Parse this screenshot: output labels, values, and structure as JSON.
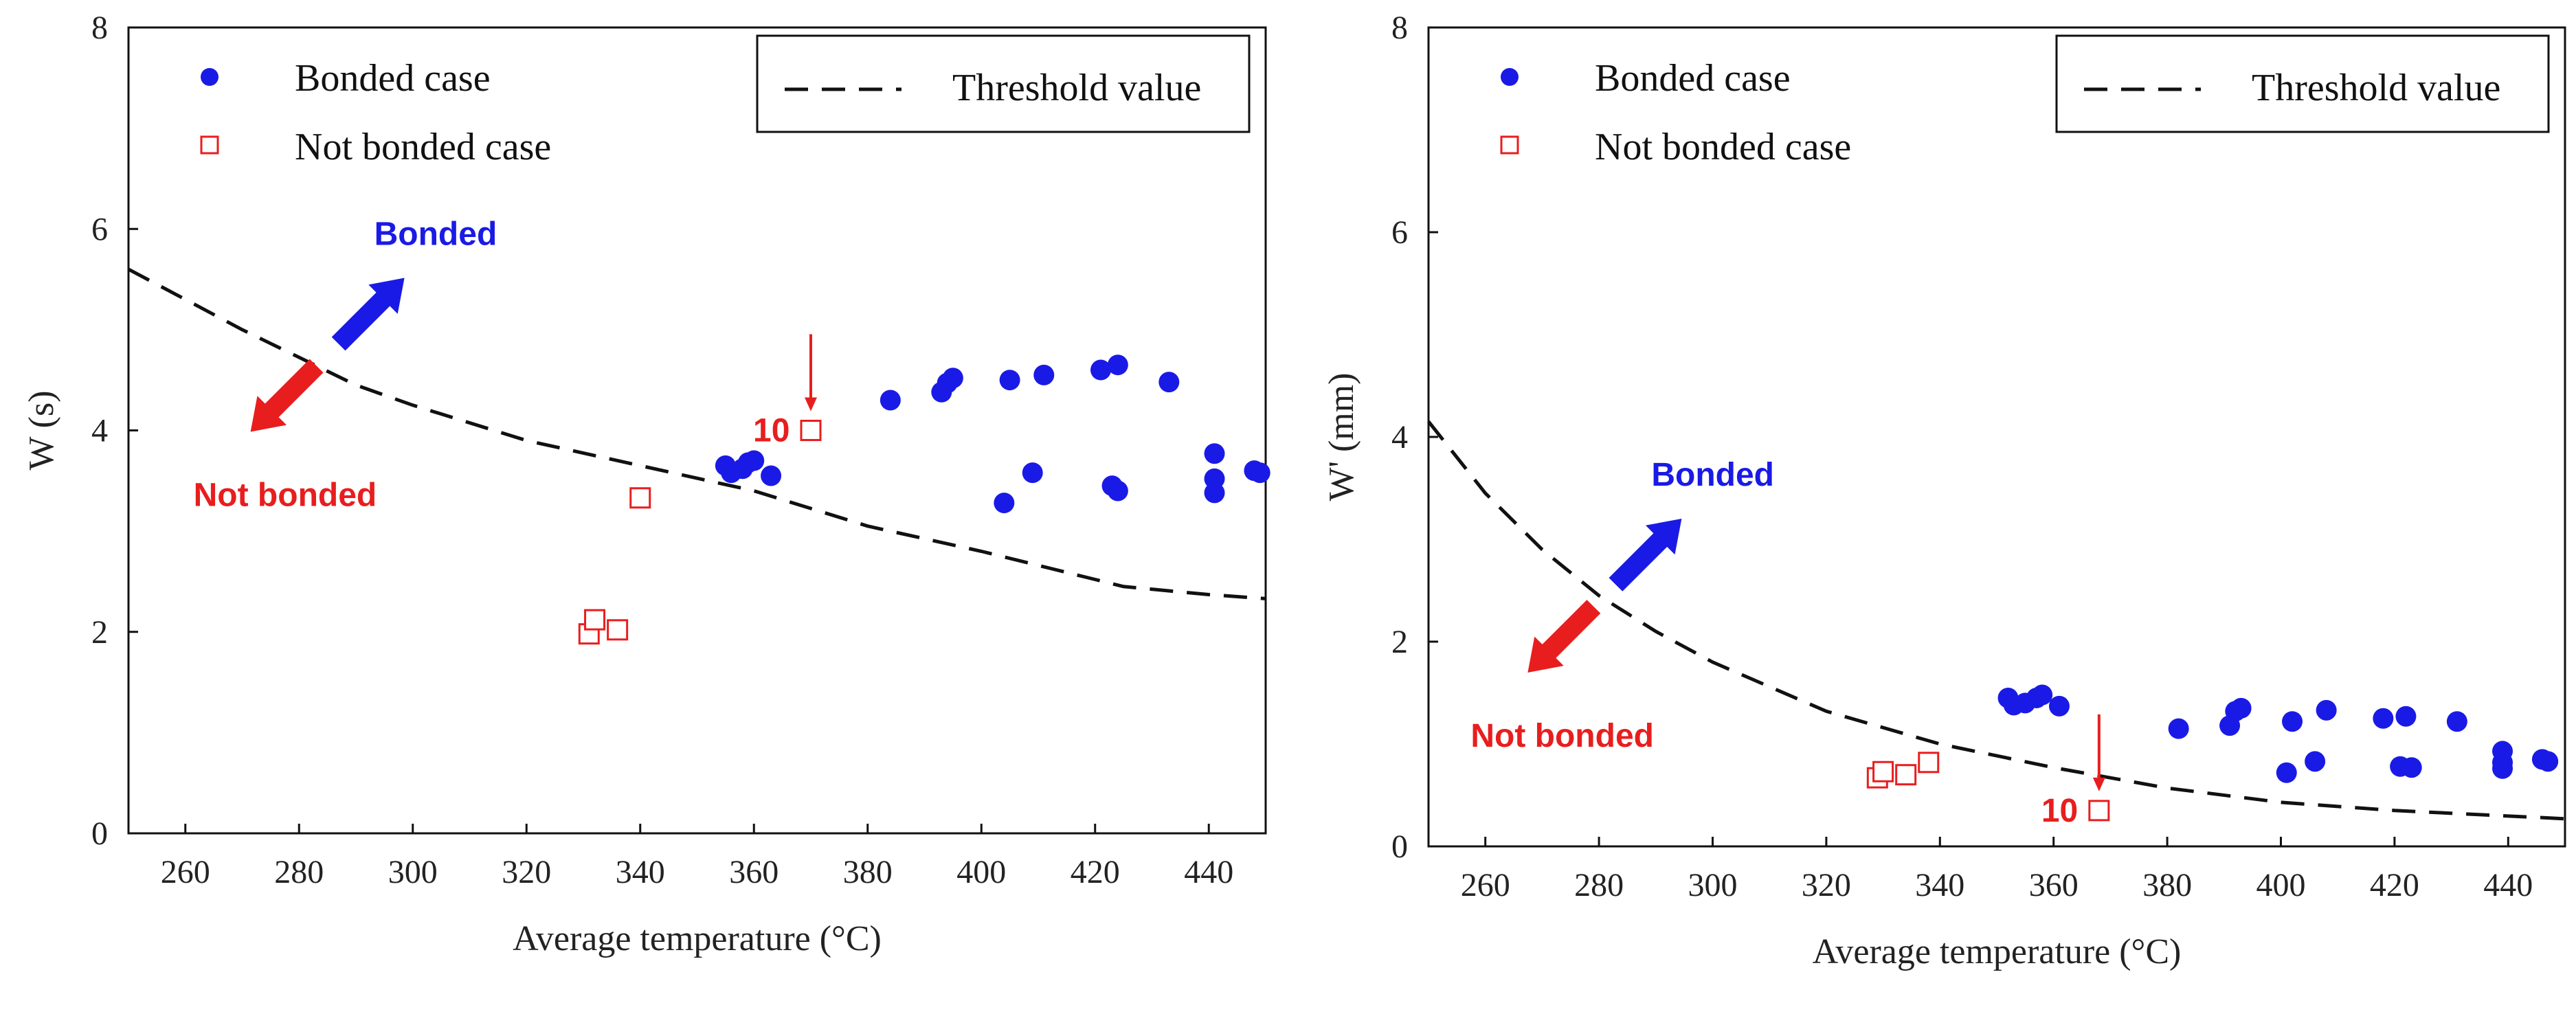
{
  "chart_data": [
    {
      "type": "scatter",
      "id": "left",
      "title": "",
      "xlabel": "Average temperature (°C)",
      "ylabel": "W (s)",
      "xlim": [
        250,
        450
      ],
      "ylim": [
        0,
        8
      ],
      "xticks": [
        260,
        280,
        300,
        320,
        340,
        360,
        380,
        400,
        420,
        440
      ],
      "yticks": [
        0,
        2,
        4,
        6,
        8
      ],
      "legend": {
        "bonded_label": "Bonded case",
        "not_bonded_label": "Not bonded case",
        "threshold_label": "Threshold value"
      },
      "series": [
        {
          "name": "Bonded case",
          "marker": "filled-circle",
          "color": "#1a1ae6",
          "points": [
            [
              355,
              3.65
            ],
            [
              356,
              3.58
            ],
            [
              358,
              3.62
            ],
            [
              359,
              3.68
            ],
            [
              360,
              3.7
            ],
            [
              363,
              3.55
            ],
            [
              384,
              4.3
            ],
            [
              393,
              4.38
            ],
            [
              394,
              4.47
            ],
            [
              395,
              4.52
            ],
            [
              404,
              3.28
            ],
            [
              405,
              4.5
            ],
            [
              409,
              3.58
            ],
            [
              411,
              4.55
            ],
            [
              421,
              4.6
            ],
            [
              423,
              3.45
            ],
            [
              424,
              4.65
            ],
            [
              424,
              3.4
            ],
            [
              433,
              4.48
            ],
            [
              441,
              3.77
            ],
            [
              441,
              3.52
            ],
            [
              441,
              3.38
            ],
            [
              448,
              3.6
            ],
            [
              449,
              3.58
            ]
          ]
        },
        {
          "name": "Not bonded case",
          "marker": "open-square",
          "color": "#e81e1e",
          "points": [
            [
              331,
              1.98
            ],
            [
              332,
              2.12
            ],
            [
              336,
              2.02
            ],
            [
              340,
              3.33
            ],
            [
              370,
              4.0
            ]
          ]
        },
        {
          "name": "Threshold value",
          "marker": "dashed-line",
          "color": "#111111",
          "points": [
            [
              250,
              5.6
            ],
            [
              270,
              5.0
            ],
            [
              290,
              4.45
            ],
            [
              300,
              4.25
            ],
            [
              320,
              3.9
            ],
            [
              340,
              3.65
            ],
            [
              360,
              3.4
            ],
            [
              380,
              3.05
            ],
            [
              400,
              2.8
            ],
            [
              420,
              2.52
            ],
            [
              425,
              2.45
            ],
            [
              440,
              2.37
            ],
            [
              450,
              2.33
            ]
          ]
        }
      ],
      "annotations": {
        "bonded_text": "Bonded",
        "not_bonded_text": "Not bonded",
        "marked_point_label": "10",
        "marked_point": [
          370,
          4.0
        ],
        "arrow_center": [
          285,
          4.75
        ]
      }
    },
    {
      "type": "scatter",
      "id": "right",
      "title": "",
      "xlabel": "Average temperature (°C)",
      "ylabel": "W' (mm)",
      "xlim": [
        250,
        450
      ],
      "ylim": [
        0,
        8
      ],
      "xticks": [
        260,
        280,
        300,
        320,
        340,
        360,
        380,
        400,
        420,
        440
      ],
      "yticks": [
        0,
        2,
        4,
        6,
        8
      ],
      "legend": {
        "bonded_label": "Bonded case",
        "not_bonded_label": "Not bonded case",
        "threshold_label": "Threshold value"
      },
      "series": [
        {
          "name": "Bonded case",
          "marker": "filled-circle",
          "color": "#1a1ae6",
          "points": [
            [
              352,
              1.45
            ],
            [
              353,
              1.38
            ],
            [
              355,
              1.4
            ],
            [
              357,
              1.45
            ],
            [
              358,
              1.48
            ],
            [
              361,
              1.37
            ],
            [
              382,
              1.15
            ],
            [
              391,
              1.18
            ],
            [
              392,
              1.32
            ],
            [
              393,
              1.35
            ],
            [
              401,
              0.72
            ],
            [
              402,
              1.22
            ],
            [
              406,
              0.83
            ],
            [
              408,
              1.33
            ],
            [
              418,
              1.25
            ],
            [
              421,
              0.78
            ],
            [
              422,
              1.27
            ],
            [
              423,
              0.77
            ],
            [
              431,
              1.22
            ],
            [
              439,
              0.93
            ],
            [
              439,
              0.82
            ],
            [
              439,
              0.76
            ],
            [
              446,
              0.85
            ],
            [
              447,
              0.83
            ]
          ]
        },
        {
          "name": "Not bonded case",
          "marker": "open-square",
          "color": "#e81e1e",
          "points": [
            [
              329,
              0.67
            ],
            [
              330,
              0.73
            ],
            [
              334,
              0.7
            ],
            [
              338,
              0.82
            ],
            [
              368,
              0.35
            ]
          ]
        },
        {
          "name": "Threshold value",
          "marker": "dashed-line",
          "color": "#111111",
          "points": [
            [
              250,
              4.15
            ],
            [
              260,
              3.45
            ],
            [
              270,
              2.9
            ],
            [
              280,
              2.45
            ],
            [
              290,
              2.1
            ],
            [
              300,
              1.8
            ],
            [
              320,
              1.32
            ],
            [
              340,
              1.0
            ],
            [
              360,
              0.77
            ],
            [
              380,
              0.57
            ],
            [
              400,
              0.43
            ],
            [
              420,
              0.35
            ],
            [
              450,
              0.27
            ]
          ]
        }
      ],
      "annotations": {
        "bonded_text": "Bonded",
        "not_bonded_text": "Not bonded",
        "marked_point_label": "10",
        "marked_point": [
          368,
          0.35
        ],
        "arrow_center": [
          281,
          2.45
        ]
      }
    }
  ],
  "colors": {
    "bonded": "#1a1ae6",
    "not_bonded": "#e81e1e",
    "threshold": "#111111"
  }
}
